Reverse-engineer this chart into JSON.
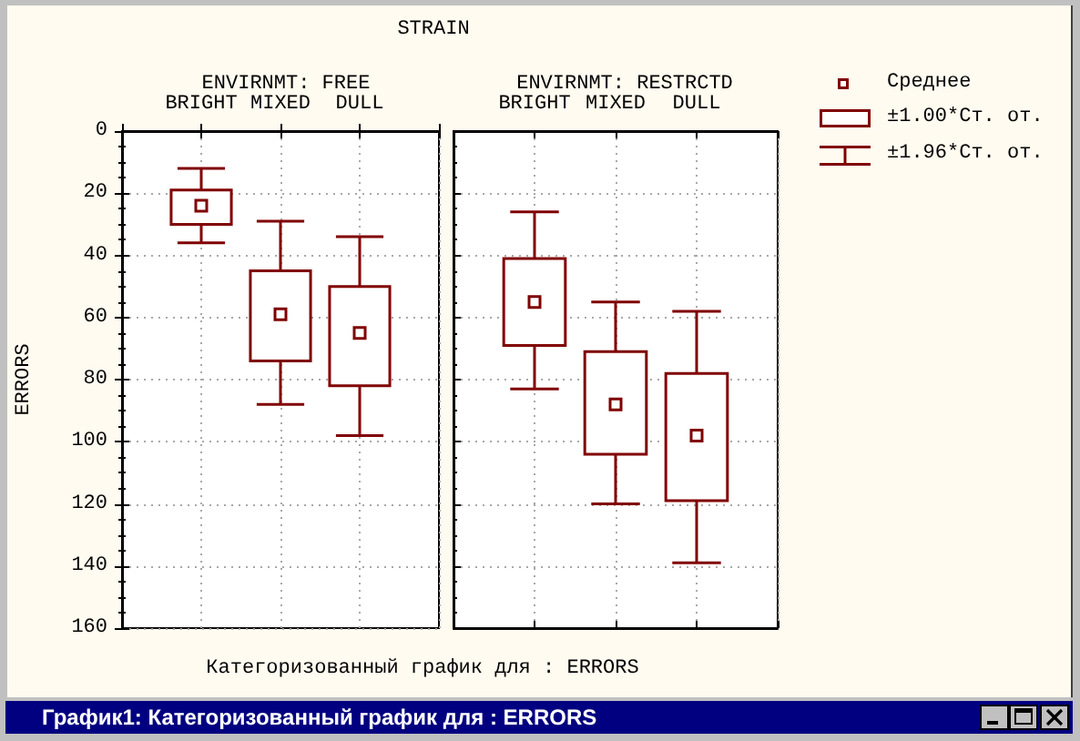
{
  "chart_data": [
    {
      "type": "box",
      "title": "ENVIRNMT: FREE",
      "xlabel": "STRAIN",
      "ylabel": "ERRORS",
      "categories": [
        "BRIGHT",
        "MIXED",
        "DULL"
      ],
      "series": [
        {
          "color": "#800000",
          "boxes": [
            {
              "low": 12,
              "q1": 19,
              "q3": 30,
              "high": 36,
              "mean": 24
            },
            {
              "low": 29,
              "q1": 45,
              "q3": 74,
              "high": 88,
              "mean": 59
            },
            {
              "low": 34,
              "q1": 50,
              "q3": 82,
              "high": 98,
              "mean": 65
            }
          ]
        }
      ],
      "ylim": [
        160,
        0
      ],
      "yticks": [
        0,
        20,
        40,
        60,
        80,
        100,
        120,
        140,
        160
      ],
      "grid": true,
      "marker": "square",
      "annotations": [
        "Категоризованный график для : ERRORS",
        "График1: Категоризованный график для : ERRORS",
        "Среднее",
        "±1.00*Ст. от.",
        "±1.96*Ст. от."
      ]
    },
    {
      "type": "box",
      "title": "ENVIRNMT: RESTRCTD",
      "categories": [
        "BRIGHT",
        "MIXED",
        "DULL"
      ],
      "series": [
        {
          "color": "#800000",
          "boxes": [
            {
              "low": 26,
              "q1": 41,
              "q3": 69,
              "high": 83,
              "mean": 55
            },
            {
              "low": 55,
              "q1": 71,
              "q3": 104,
              "high": 120,
              "mean": 88
            },
            {
              "low": 58,
              "q1": 78,
              "q3": 119,
              "high": 139,
              "mean": 98
            }
          ]
        }
      ],
      "ylim": [
        160,
        0
      ],
      "yticks": [
        0,
        20,
        40,
        60,
        80,
        100,
        120,
        140,
        160
      ],
      "grid": true,
      "marker": "square",
      "tick_labels": "x"
    }
  ]
}
